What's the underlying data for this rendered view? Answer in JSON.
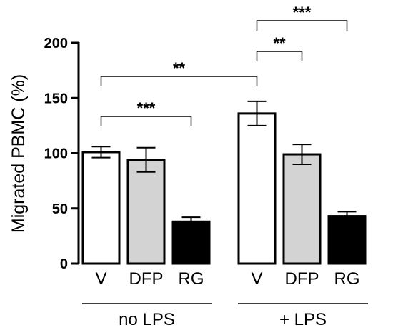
{
  "chart_data": {
    "type": "bar",
    "ylabel": "Migrated PBMC  (%)",
    "ylim": [
      0,
      200
    ],
    "yticks": [
      0,
      50,
      100,
      150,
      200
    ],
    "grid": false,
    "legend": "none",
    "categories": [
      "V",
      "DFP",
      "RG",
      "V",
      "DFP",
      "RG"
    ],
    "values": [
      101,
      94,
      38,
      136,
      99,
      43
    ],
    "errors": [
      5,
      11,
      4,
      11,
      9,
      4
    ],
    "bar_colors": [
      "#ffffff",
      "#d3d3d3",
      "#000000",
      "#ffffff",
      "#d3d3d3",
      "#000000"
    ],
    "groups": [
      {
        "label": "no LPS",
        "bars": [
          0,
          1,
          2
        ]
      },
      {
        "label": "+ LPS",
        "bars": [
          3,
          4,
          5
        ]
      }
    ],
    "significance": [
      {
        "from": 0,
        "to": 3,
        "label": "**"
      },
      {
        "from": 0,
        "to": 2,
        "label": "***"
      },
      {
        "from": 3,
        "to": 4,
        "label": "**"
      },
      {
        "from": 3,
        "to": 5,
        "label": "***"
      }
    ]
  }
}
